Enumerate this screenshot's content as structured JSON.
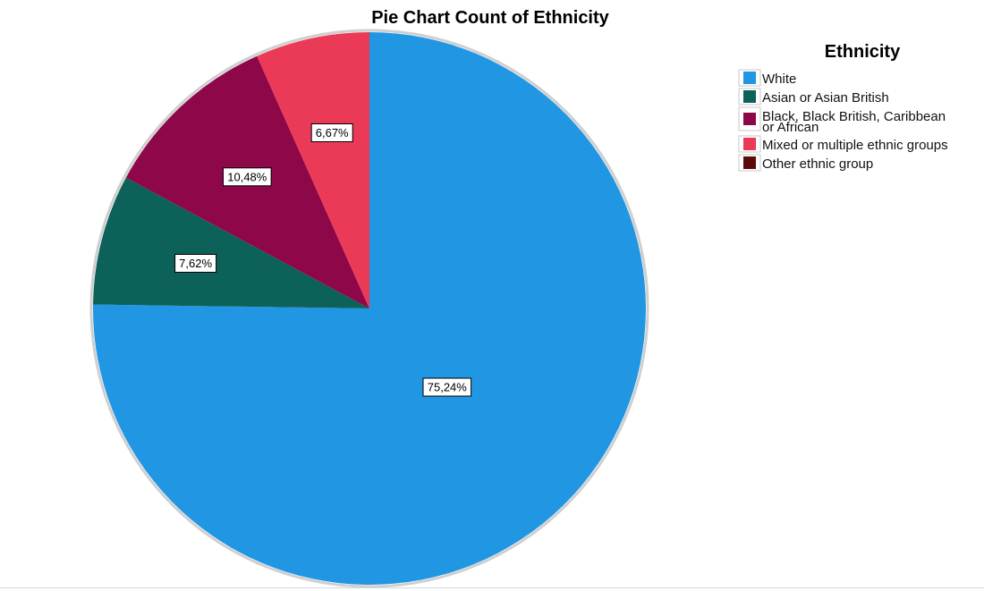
{
  "chart_data": {
    "type": "pie",
    "title": "Pie Chart Count of Ethnicity",
    "legend_title": "Ethnicity",
    "legend_position": "top-right",
    "start_angle_deg": 0,
    "direction": "clockwise",
    "slices": [
      {
        "label": "White",
        "value": 75.24,
        "display": "75,24%",
        "color": "#2196e3"
      },
      {
        "label": "Asian or Asian British",
        "value": 7.62,
        "display": "7,62%",
        "color": "#0c6158"
      },
      {
        "label": "Black, Black British, Caribbean or African",
        "label_lines": [
          "Black, Black British, Caribbean",
          "or African"
        ],
        "value": 10.48,
        "display": "10,48%",
        "color": "#8e0749"
      },
      {
        "label": "Mixed or multiple ethnic groups",
        "value": 6.67,
        "display": "6,67%",
        "color": "#eb3a58"
      },
      {
        "label": "Other ethnic group",
        "value": 0,
        "display": "",
        "color": "#5b0a0a"
      }
    ]
  }
}
